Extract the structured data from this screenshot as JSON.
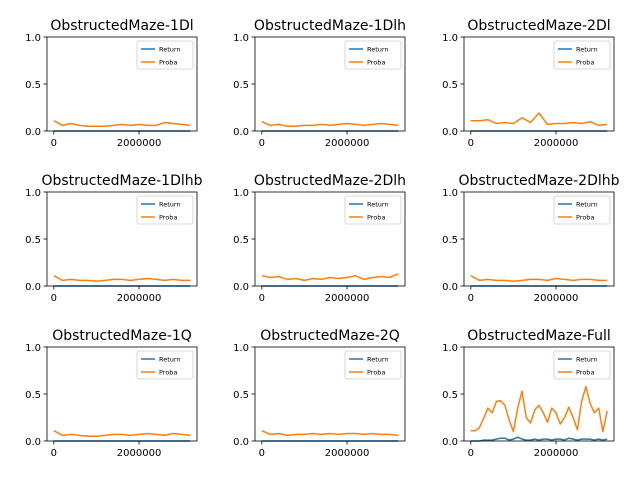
{
  "colors": {
    "return": "#1f77b4",
    "proba": "#ff7f0e"
  },
  "chart_data": [
    {
      "type": "line",
      "title": "ObstructedMaze-1Dl",
      "xlim": [
        -160000,
        3360000
      ],
      "ylim": [
        0,
        1
      ],
      "xticks": [
        0,
        2000000
      ],
      "xtick_labels": [
        "0",
        "2000000"
      ],
      "yticks": [
        0,
        0.5,
        1
      ],
      "ytick_labels": [
        "0.0",
        "0.5",
        "1.0"
      ],
      "legend": "top-right",
      "x": [
        0,
        200000,
        400000,
        600000,
        800000,
        1000000,
        1200000,
        1400000,
        1600000,
        1800000,
        2000000,
        2200000,
        2400000,
        2600000,
        2800000,
        3000000,
        3200000
      ],
      "series": [
        {
          "name": "Return",
          "values": [
            0,
            0,
            0,
            0,
            0,
            0,
            0,
            0,
            0,
            0,
            0,
            0,
            0,
            0,
            0,
            0,
            0
          ]
        },
        {
          "name": "Proba",
          "values": [
            0.11,
            0.06,
            0.08,
            0.06,
            0.05,
            0.05,
            0.05,
            0.06,
            0.07,
            0.06,
            0.07,
            0.06,
            0.06,
            0.09,
            0.08,
            0.07,
            0.06
          ]
        }
      ]
    },
    {
      "type": "line",
      "title": "ObstructedMaze-1Dlh",
      "xlim": [
        -160000,
        3360000
      ],
      "ylim": [
        0,
        1
      ],
      "xticks": [
        0,
        2000000
      ],
      "xtick_labels": [
        "0",
        "2000000"
      ],
      "yticks": [
        0,
        0.5,
        1
      ],
      "ytick_labels": [
        "0.0",
        "0.5",
        "1.0"
      ],
      "legend": "top-right",
      "x": [
        0,
        200000,
        400000,
        600000,
        800000,
        1000000,
        1200000,
        1400000,
        1600000,
        1800000,
        2000000,
        2200000,
        2400000,
        2600000,
        2800000,
        3000000,
        3200000
      ],
      "series": [
        {
          "name": "Return",
          "values": [
            0,
            0,
            0,
            0,
            0,
            0,
            0,
            0,
            0,
            0,
            0,
            0,
            0,
            0,
            0,
            0,
            0
          ]
        },
        {
          "name": "Proba",
          "values": [
            0.1,
            0.06,
            0.07,
            0.05,
            0.05,
            0.06,
            0.06,
            0.07,
            0.06,
            0.07,
            0.08,
            0.07,
            0.06,
            0.07,
            0.08,
            0.07,
            0.06
          ]
        }
      ]
    },
    {
      "type": "line",
      "title": "ObstructedMaze-2Dl",
      "xlim": [
        -160000,
        3360000
      ],
      "ylim": [
        0,
        1
      ],
      "xticks": [
        0,
        2000000
      ],
      "xtick_labels": [
        "0",
        "2000000"
      ],
      "yticks": [
        0,
        0.5,
        1
      ],
      "ytick_labels": [
        "0.0",
        "0.5",
        "1.0"
      ],
      "legend": "top-right",
      "x": [
        0,
        200000,
        400000,
        600000,
        800000,
        1000000,
        1200000,
        1400000,
        1600000,
        1800000,
        2000000,
        2200000,
        2400000,
        2600000,
        2800000,
        3000000,
        3200000
      ],
      "series": [
        {
          "name": "Return",
          "values": [
            0,
            0,
            0,
            0,
            0,
            0,
            0,
            0,
            0,
            0,
            0,
            0,
            0,
            0,
            0,
            0,
            0
          ]
        },
        {
          "name": "Proba",
          "values": [
            0.11,
            0.11,
            0.12,
            0.08,
            0.09,
            0.08,
            0.14,
            0.09,
            0.19,
            0.07,
            0.08,
            0.08,
            0.09,
            0.08,
            0.1,
            0.06,
            0.07
          ]
        }
      ]
    },
    {
      "type": "line",
      "title": "ObstructedMaze-1Dlhb",
      "xlim": [
        -160000,
        3360000
      ],
      "ylim": [
        0,
        1
      ],
      "xticks": [
        0,
        2000000
      ],
      "xtick_labels": [
        "0",
        "2000000"
      ],
      "yticks": [
        0,
        0.5,
        1
      ],
      "ytick_labels": [
        "0.0",
        "0.5",
        "1.0"
      ],
      "legend": "top-right",
      "x": [
        0,
        200000,
        400000,
        600000,
        800000,
        1000000,
        1200000,
        1400000,
        1600000,
        1800000,
        2000000,
        2200000,
        2400000,
        2600000,
        2800000,
        3000000,
        3200000
      ],
      "series": [
        {
          "name": "Return",
          "values": [
            0,
            0,
            0,
            0,
            0,
            0,
            0,
            0,
            0,
            0,
            0,
            0,
            0,
            0,
            0,
            0,
            0
          ]
        },
        {
          "name": "Proba",
          "values": [
            0.11,
            0.06,
            0.07,
            0.06,
            0.06,
            0.05,
            0.06,
            0.07,
            0.07,
            0.06,
            0.07,
            0.08,
            0.07,
            0.06,
            0.07,
            0.06,
            0.06
          ]
        }
      ]
    },
    {
      "type": "line",
      "title": "ObstructedMaze-2Dlh",
      "xlim": [
        -160000,
        3360000
      ],
      "ylim": [
        0,
        1
      ],
      "xticks": [
        0,
        2000000
      ],
      "xtick_labels": [
        "0",
        "2000000"
      ],
      "yticks": [
        0,
        0.5,
        1
      ],
      "ytick_labels": [
        "0.0",
        "0.5",
        "1.0"
      ],
      "legend": "top-right",
      "x": [
        0,
        200000,
        400000,
        600000,
        800000,
        1000000,
        1200000,
        1400000,
        1600000,
        1800000,
        2000000,
        2200000,
        2400000,
        2600000,
        2800000,
        3000000,
        3200000
      ],
      "series": [
        {
          "name": "Return",
          "values": [
            0,
            0,
            0,
            0,
            0,
            0,
            0,
            0,
            0,
            0,
            0,
            0,
            0,
            0,
            0,
            0,
            0
          ]
        },
        {
          "name": "Proba",
          "values": [
            0.11,
            0.09,
            0.1,
            0.07,
            0.08,
            0.06,
            0.08,
            0.07,
            0.09,
            0.08,
            0.09,
            0.11,
            0.07,
            0.09,
            0.1,
            0.09,
            0.13
          ]
        }
      ]
    },
    {
      "type": "line",
      "title": "ObstructedMaze-2Dlhb",
      "xlim": [
        -160000,
        3360000
      ],
      "ylim": [
        0,
        1
      ],
      "xticks": [
        0,
        2000000
      ],
      "xtick_labels": [
        "0",
        "2000000"
      ],
      "yticks": [
        0,
        0.5,
        1
      ],
      "ytick_labels": [
        "0.0",
        "0.5",
        "1.0"
      ],
      "legend": "top-right",
      "x": [
        0,
        200000,
        400000,
        600000,
        800000,
        1000000,
        1200000,
        1400000,
        1600000,
        1800000,
        2000000,
        2200000,
        2400000,
        2600000,
        2800000,
        3000000,
        3200000
      ],
      "series": [
        {
          "name": "Return",
          "values": [
            0,
            0,
            0,
            0,
            0,
            0,
            0,
            0,
            0,
            0,
            0,
            0,
            0,
            0,
            0,
            0,
            0
          ]
        },
        {
          "name": "Proba",
          "values": [
            0.11,
            0.06,
            0.07,
            0.06,
            0.06,
            0.05,
            0.06,
            0.07,
            0.07,
            0.06,
            0.08,
            0.07,
            0.06,
            0.07,
            0.07,
            0.06,
            0.06
          ]
        }
      ]
    },
    {
      "type": "line",
      "title": "ObstructedMaze-1Q",
      "xlim": [
        -160000,
        3360000
      ],
      "ylim": [
        0,
        1
      ],
      "xticks": [
        0,
        2000000
      ],
      "xtick_labels": [
        "0",
        "2000000"
      ],
      "yticks": [
        0,
        0.5,
        1
      ],
      "ytick_labels": [
        "0.0",
        "0.5",
        "1.0"
      ],
      "legend": "top-right",
      "x": [
        0,
        200000,
        400000,
        600000,
        800000,
        1000000,
        1200000,
        1400000,
        1600000,
        1800000,
        2000000,
        2200000,
        2400000,
        2600000,
        2800000,
        3000000,
        3200000
      ],
      "series": [
        {
          "name": "Return",
          "values": [
            0,
            0,
            0,
            0,
            0,
            0,
            0,
            0,
            0,
            0,
            0,
            0,
            0,
            0,
            0,
            0,
            0
          ]
        },
        {
          "name": "Proba",
          "values": [
            0.11,
            0.06,
            0.07,
            0.06,
            0.05,
            0.05,
            0.06,
            0.07,
            0.07,
            0.06,
            0.07,
            0.08,
            0.07,
            0.06,
            0.08,
            0.07,
            0.06
          ]
        }
      ]
    },
    {
      "type": "line",
      "title": "ObstructedMaze-2Q",
      "xlim": [
        -160000,
        3360000
      ],
      "ylim": [
        0,
        1
      ],
      "xticks": [
        0,
        2000000
      ],
      "xtick_labels": [
        "0",
        "2000000"
      ],
      "yticks": [
        0,
        0.5,
        1
      ],
      "ytick_labels": [
        "0.0",
        "0.5",
        "1.0"
      ],
      "legend": "top-right",
      "x": [
        0,
        200000,
        400000,
        600000,
        800000,
        1000000,
        1200000,
        1400000,
        1600000,
        1800000,
        2000000,
        2200000,
        2400000,
        2600000,
        2800000,
        3000000,
        3200000
      ],
      "series": [
        {
          "name": "Return",
          "values": [
            0,
            0,
            0,
            0,
            0,
            0,
            0,
            0,
            0,
            0,
            0,
            0,
            0,
            0,
            0,
            0,
            0
          ]
        },
        {
          "name": "Proba",
          "values": [
            0.11,
            0.07,
            0.08,
            0.06,
            0.07,
            0.07,
            0.08,
            0.07,
            0.08,
            0.07,
            0.08,
            0.08,
            0.07,
            0.08,
            0.07,
            0.07,
            0.06
          ]
        }
      ]
    },
    {
      "type": "line",
      "title": "ObstructedMaze-Full",
      "xlim": [
        -160000,
        3360000
      ],
      "ylim": [
        0,
        1
      ],
      "xticks": [
        0,
        2000000
      ],
      "xtick_labels": [
        "0",
        "2000000"
      ],
      "yticks": [
        0,
        0.5,
        1
      ],
      "ytick_labels": [
        "0.0",
        "0.5",
        "1.0"
      ],
      "legend": "top-right",
      "x": [
        0,
        100000,
        200000,
        300000,
        400000,
        500000,
        600000,
        700000,
        800000,
        900000,
        1000000,
        1100000,
        1200000,
        1300000,
        1400000,
        1500000,
        1600000,
        1700000,
        1800000,
        1900000,
        2000000,
        2100000,
        2200000,
        2300000,
        2400000,
        2500000,
        2600000,
        2700000,
        2800000,
        2900000,
        3000000,
        3100000,
        3200000
      ],
      "series": [
        {
          "name": "Return",
          "values": [
            0,
            0,
            0,
            0.01,
            0.01,
            0.01,
            0.02,
            0.03,
            0.03,
            0.01,
            0.02,
            0.04,
            0.02,
            0.01,
            0.01,
            0.02,
            0.01,
            0.02,
            0.02,
            0.01,
            0.02,
            0.02,
            0.01,
            0.03,
            0.02,
            0.01,
            0.02,
            0.02,
            0.02,
            0.01,
            0.02,
            0.01,
            0.02
          ]
        },
        {
          "name": "Proba",
          "values": [
            0.11,
            0.11,
            0.14,
            0.24,
            0.35,
            0.3,
            0.42,
            0.43,
            0.38,
            0.22,
            0.1,
            0.35,
            0.53,
            0.25,
            0.19,
            0.33,
            0.38,
            0.3,
            0.2,
            0.35,
            0.3,
            0.18,
            0.25,
            0.36,
            0.25,
            0.12,
            0.42,
            0.58,
            0.4,
            0.3,
            0.35,
            0.1,
            0.32
          ]
        }
      ]
    }
  ]
}
